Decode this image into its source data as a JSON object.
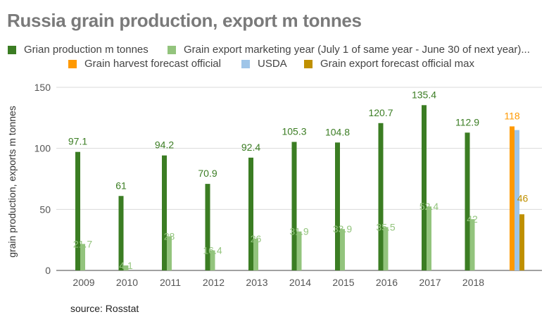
{
  "chart_data": {
    "type": "bar",
    "title": "Russia grain production, export m tonnes",
    "ylabel": "grain production, exports m tonnes",
    "xlabel": "",
    "ylim": [
      0,
      150
    ],
    "yticks": [
      0,
      50,
      100,
      150
    ],
    "grid": true,
    "legend_position": "top",
    "categories": [
      "2009",
      "2010",
      "2011",
      "2012",
      "2013",
      "2014",
      "2015",
      "2016",
      "2017",
      "2018",
      ""
    ],
    "series": [
      {
        "name": "Grian production m tonnes",
        "color": "#3b7d23",
        "values": [
          97.1,
          61,
          94.2,
          70.9,
          92.4,
          105.3,
          104.8,
          120.7,
          135.4,
          112.9,
          null
        ],
        "labels": [
          "97.1",
          "61",
          "94.2",
          "70.9",
          "92.4",
          "105.3",
          "104.8",
          "120.7",
          "135.4",
          "112.9",
          ""
        ]
      },
      {
        "name": "Grain export marketing year (July 1 of same year - June 30 of next year)...",
        "color": "#93c47d",
        "values": [
          21.7,
          4.1,
          28,
          16.4,
          26,
          31.9,
          33.9,
          35.5,
          52.4,
          42,
          null
        ],
        "labels": [
          "21.7",
          "4.1",
          "28",
          "16.4",
          "26",
          "31.9",
          "33.9",
          "35.5",
          "52.4",
          "42",
          ""
        ]
      },
      {
        "name": "Grain harvest forecast official",
        "color": "#ff9900",
        "values": [
          null,
          null,
          null,
          null,
          null,
          null,
          null,
          null,
          null,
          null,
          118
        ],
        "labels": [
          "",
          "",
          "",
          "",
          "",
          "",
          "",
          "",
          "",
          "",
          "118"
        ]
      },
      {
        "name": "USDA",
        "color": "#9fc5e8",
        "values": [
          null,
          null,
          null,
          null,
          null,
          null,
          null,
          null,
          null,
          null,
          115
        ],
        "labels": [
          "",
          "",
          "",
          "",
          "",
          "",
          "",
          "",
          "",
          "",
          ""
        ]
      },
      {
        "name": "Grain export forecast official max",
        "color": "#bf9000",
        "values": [
          null,
          null,
          null,
          null,
          null,
          null,
          null,
          null,
          null,
          null,
          46
        ],
        "labels": [
          "",
          "",
          "",
          "",
          "",
          "",
          "",
          "",
          "",
          "",
          "46"
        ]
      }
    ]
  },
  "source": "source: Rosstat"
}
